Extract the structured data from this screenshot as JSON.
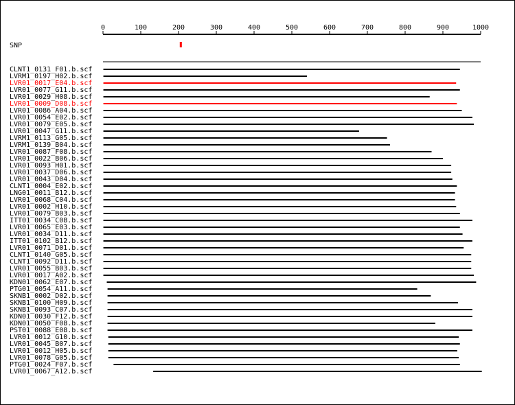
{
  "axis": {
    "ticks": [
      0,
      100,
      200,
      300,
      400,
      500,
      600,
      700,
      800,
      900,
      1000
    ],
    "max": 1000
  },
  "snp": {
    "label": "SNP",
    "position": 206,
    "color": "#ff0000"
  },
  "colors": {
    "normal": "#000000",
    "highlight": "#ff0000"
  },
  "reads": [
    {
      "name": "CLNT1_0131_F01.b.scf",
      "start": 1,
      "end": 945,
      "highlight": false
    },
    {
      "name": "LVRM1_0197_H02.b.scf",
      "start": 1,
      "end": 540,
      "highlight": false
    },
    {
      "name": "LVR01_0017_E04.b.scf",
      "start": 1,
      "end": 935,
      "highlight": true
    },
    {
      "name": "LVR01_0077_G11.b.scf",
      "start": 1,
      "end": 945,
      "highlight": false
    },
    {
      "name": "LVR01_0029_H08.b.scf",
      "start": 1,
      "end": 865,
      "highlight": false
    },
    {
      "name": "LVR01_0009_D08.b.scf",
      "start": 1,
      "end": 937,
      "highlight": true
    },
    {
      "name": "LVR01_0086_A04.b.scf",
      "start": 1,
      "end": 950,
      "highlight": false
    },
    {
      "name": "LVR01_0054_E02.b.scf",
      "start": 1,
      "end": 978,
      "highlight": false
    },
    {
      "name": "LVR01_0079_E05.b.scf",
      "start": 1,
      "end": 982,
      "highlight": false
    },
    {
      "name": "LVR01_0047_G11.b.scf",
      "start": 1,
      "end": 678,
      "highlight": false
    },
    {
      "name": "LVRM1_0113_G05.b.scf",
      "start": 1,
      "end": 752,
      "highlight": false
    },
    {
      "name": "LVRM1_0139_B04.b.scf",
      "start": 1,
      "end": 760,
      "highlight": false
    },
    {
      "name": "LVR01_0087_F08.b.scf",
      "start": 1,
      "end": 870,
      "highlight": false
    },
    {
      "name": "LVR01_0022_B06.b.scf",
      "start": 1,
      "end": 900,
      "highlight": false
    },
    {
      "name": "LVR01_0093_H01.b.scf",
      "start": 1,
      "end": 922,
      "highlight": false
    },
    {
      "name": "LVR01_0037_D06.b.scf",
      "start": 1,
      "end": 922,
      "highlight": false
    },
    {
      "name": "LVR01_0043_D04.b.scf",
      "start": 1,
      "end": 925,
      "highlight": false
    },
    {
      "name": "CLNT1_0004_E02.b.scf",
      "start": 1,
      "end": 937,
      "highlight": false
    },
    {
      "name": "LNG01_0011_B12.b.scf",
      "start": 1,
      "end": 932,
      "highlight": false
    },
    {
      "name": "LVR01_0068_C04.b.scf",
      "start": 1,
      "end": 932,
      "highlight": false
    },
    {
      "name": "LVR01_0002_H10.b.scf",
      "start": 1,
      "end": 935,
      "highlight": false
    },
    {
      "name": "LVR01_0079_B03.b.scf",
      "start": 1,
      "end": 945,
      "highlight": false
    },
    {
      "name": "ITT01_0034_C08.b.scf",
      "start": 1,
      "end": 978,
      "highlight": false
    },
    {
      "name": "LVR01_0065_E03.b.scf",
      "start": 1,
      "end": 945,
      "highlight": false
    },
    {
      "name": "LVR01_0034_D11.b.scf",
      "start": 1,
      "end": 952,
      "highlight": false
    },
    {
      "name": "ITT01_0102_B12.b.scf",
      "start": 1,
      "end": 978,
      "highlight": false
    },
    {
      "name": "LVR01_0071_D01.b.scf",
      "start": 1,
      "end": 955,
      "highlight": false
    },
    {
      "name": "CLNT1_0140_G05.b.scf",
      "start": 1,
      "end": 975,
      "highlight": false
    },
    {
      "name": "CLNT1_0092_D11.b.scf",
      "start": 1,
      "end": 975,
      "highlight": false
    },
    {
      "name": "LVR01_0055_B03.b.scf",
      "start": 1,
      "end": 975,
      "highlight": false
    },
    {
      "name": "LVR01_0017_A02.b.scf",
      "start": 1,
      "end": 982,
      "highlight": false
    },
    {
      "name": "KDN01_0062_E07.b.scf",
      "start": 10,
      "end": 988,
      "highlight": false
    },
    {
      "name": "PTG01_0054_A11.b.scf",
      "start": 12,
      "end": 832,
      "highlight": false
    },
    {
      "name": "SKNB1_0002_D02.b.scf",
      "start": 12,
      "end": 868,
      "highlight": false
    },
    {
      "name": "SKNB1_0100_H09.b.scf",
      "start": 12,
      "end": 940,
      "highlight": false
    },
    {
      "name": "SKNB1_0093_C07.b.scf",
      "start": 12,
      "end": 978,
      "highlight": false
    },
    {
      "name": "KDN01_0030_F12.b.scf",
      "start": 12,
      "end": 978,
      "highlight": false
    },
    {
      "name": "KDN01_0050_F08.b.scf",
      "start": 12,
      "end": 880,
      "highlight": false
    },
    {
      "name": "PST01_0088_E08.b.scf",
      "start": 12,
      "end": 978,
      "highlight": false
    },
    {
      "name": "LVR01_0012_G10.b.scf",
      "start": 14,
      "end": 942,
      "highlight": false
    },
    {
      "name": "LVR01_0045_B07.b.scf",
      "start": 14,
      "end": 945,
      "highlight": false
    },
    {
      "name": "LVR01_0012_H05.b.scf",
      "start": 14,
      "end": 938,
      "highlight": false
    },
    {
      "name": "LVR01_0078_G05.b.scf",
      "start": 14,
      "end": 942,
      "highlight": false
    },
    {
      "name": "PTG01_0024_F07.b.scf",
      "start": 28,
      "end": 945,
      "highlight": false
    },
    {
      "name": "LVR01_0067_A12.b.scf",
      "start": 133,
      "end": 1003,
      "highlight": false
    }
  ]
}
